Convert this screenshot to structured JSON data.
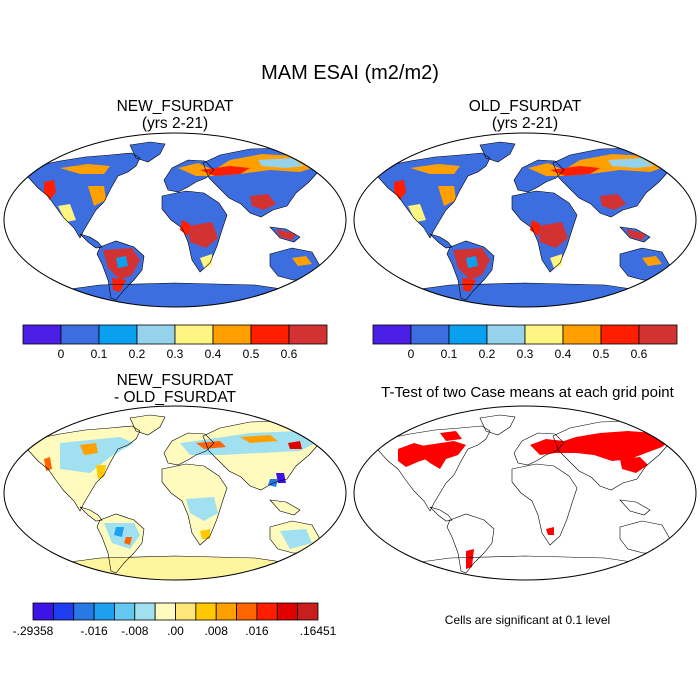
{
  "figure": {
    "title": "MAM ESAI (m2/m2)"
  },
  "panels": {
    "new": {
      "title_line1": "NEW_FSURDAT",
      "title_line2": "(yrs 2-21)"
    },
    "old": {
      "title_line1": "OLD_FSURDAT",
      "title_line2": "(yrs 2-21)"
    },
    "diff": {
      "title_line1": "NEW_FSURDAT",
      "title_line2": "- OLD_FSURDAT"
    },
    "ttest": {
      "title": "T-Test of two Case means at each grid point",
      "footnote": "Cells are significant at 0.1 level"
    }
  },
  "colorbar_abs": {
    "colors": [
      "#4b1ee6",
      "#3c6ee0",
      "#0aa0f0",
      "#96d2ec",
      "#fff582",
      "#ffa000",
      "#ff1e00",
      "#d23232"
    ],
    "labels": [
      "0",
      "0.1",
      "0.2",
      "0.3",
      "0.4",
      "0.5",
      "0.6"
    ]
  },
  "colorbar_diff": {
    "colors": [
      "#3c14e6",
      "#1e3cf0",
      "#2878e6",
      "#1ea0f0",
      "#64c8f0",
      "#a0e0f0",
      "#fffabe",
      "#ffe678",
      "#ffc800",
      "#ffa000",
      "#ff6400",
      "#ff1e00",
      "#e10000",
      "#c81e1e"
    ],
    "labels": [
      "-.29358",
      "-.016",
      "-.008",
      ".00",
      ".008",
      ".016",
      ".16451"
    ]
  },
  "colors": {
    "ocean": "#ffffff",
    "land_base": "#3c6ee0",
    "tropical_forest": "#d23232",
    "antarctic_diff": "#fff59e",
    "ttest_significant": "#ff0000"
  }
}
